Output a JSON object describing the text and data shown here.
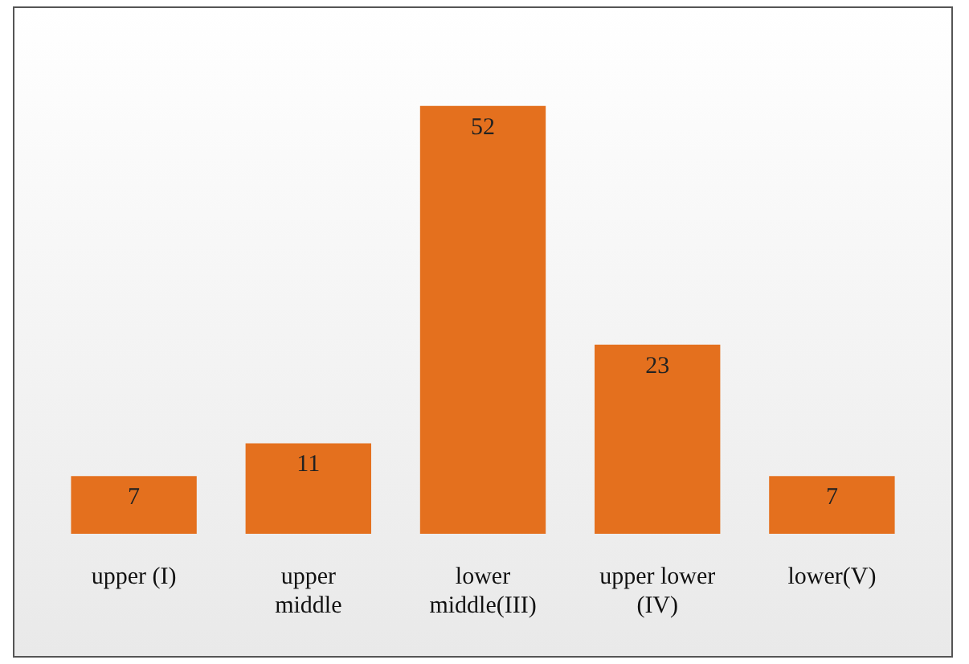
{
  "chart_data": {
    "type": "bar",
    "categories": [
      "upper (I)",
      "upper middle",
      "lower middle(III)",
      "upper lower (IV)",
      "lower(V)"
    ],
    "values": [
      7,
      11,
      52,
      23,
      7
    ],
    "color": "#e4701e",
    "data_labels": true,
    "grid": false,
    "legend": false
  }
}
